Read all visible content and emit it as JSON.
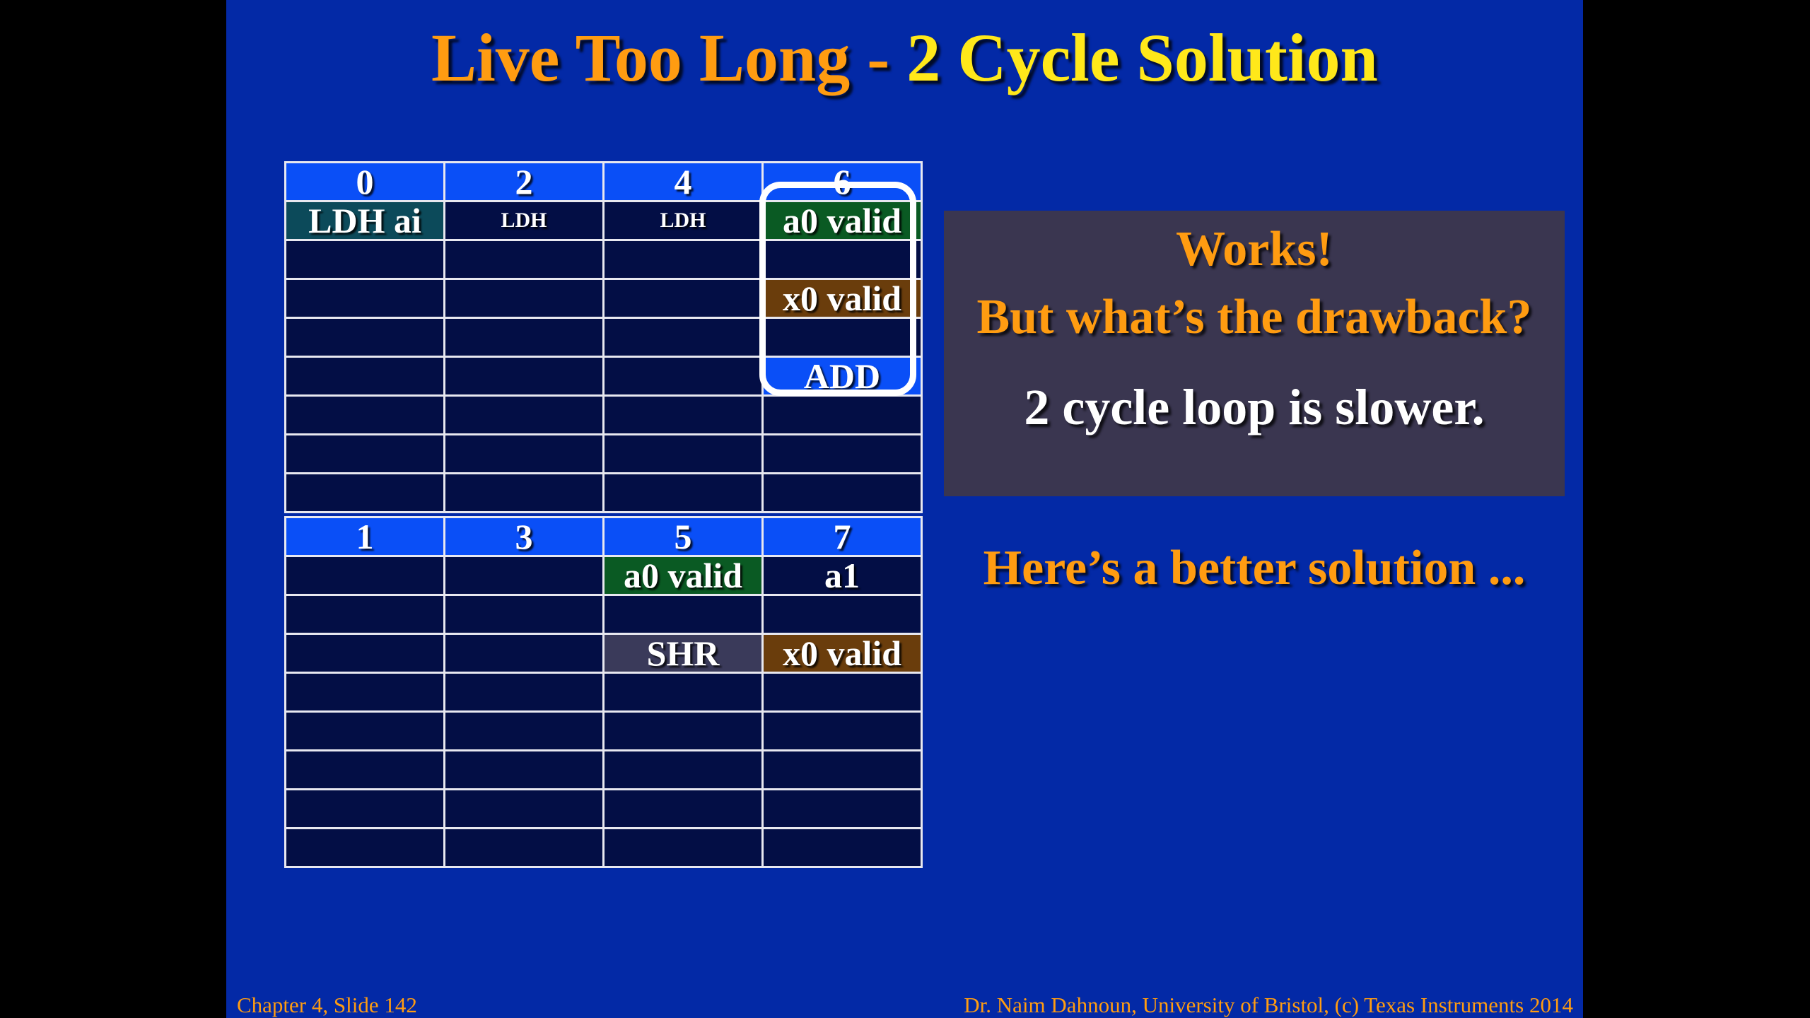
{
  "title": {
    "part1": "Live Too Long - ",
    "part2": "2 Cycle Solution"
  },
  "top_table": {
    "headers": [
      "0",
      "2",
      "4",
      "6"
    ],
    "rows": [
      [
        "LDH ai",
        "LDH",
        "LDH",
        "a0 valid"
      ],
      [
        "",
        "",
        "",
        ""
      ],
      [
        "",
        "",
        "",
        "x0 valid"
      ],
      [
        "",
        "",
        "",
        ""
      ],
      [
        "",
        "",
        "",
        "ADD"
      ],
      [
        "",
        "",
        "",
        ""
      ],
      [
        "",
        "",
        "",
        ""
      ],
      [
        "",
        "",
        "",
        ""
      ]
    ]
  },
  "bottom_table": {
    "headers": [
      "1",
      "3",
      "5",
      "7"
    ],
    "rows": [
      [
        "",
        "",
        "a0 valid",
        "a1"
      ],
      [
        "",
        "",
        "",
        ""
      ],
      [
        "",
        "",
        "SHR",
        "x0 valid"
      ],
      [
        "",
        "",
        "",
        ""
      ],
      [
        "",
        "",
        "",
        ""
      ],
      [
        "",
        "",
        "",
        ""
      ],
      [
        "",
        "",
        "",
        ""
      ],
      [
        "",
        "",
        "",
        ""
      ]
    ]
  },
  "info_box": {
    "line1": "Works!",
    "line2": "But what’s the drawback?",
    "line3": "2 cycle loop is slower."
  },
  "better_solution": "Here’s a better solution ...",
  "footer": {
    "left": "Chapter 4, Slide 142",
    "right": "Dr. Naim Dahnoun, University of Bristol,  (c) Texas Instruments 2014"
  },
  "colors": {
    "slide_bg": "#0329a6",
    "header_bg": "#0a4ff7",
    "cell_bg": "#030e45",
    "teal": "#0c4a5a",
    "green": "#0a5a23",
    "brown": "#6a3d0c",
    "slate": "#3a3a5a",
    "orange": "#ff9c11",
    "yellow": "#ffe81a"
  }
}
